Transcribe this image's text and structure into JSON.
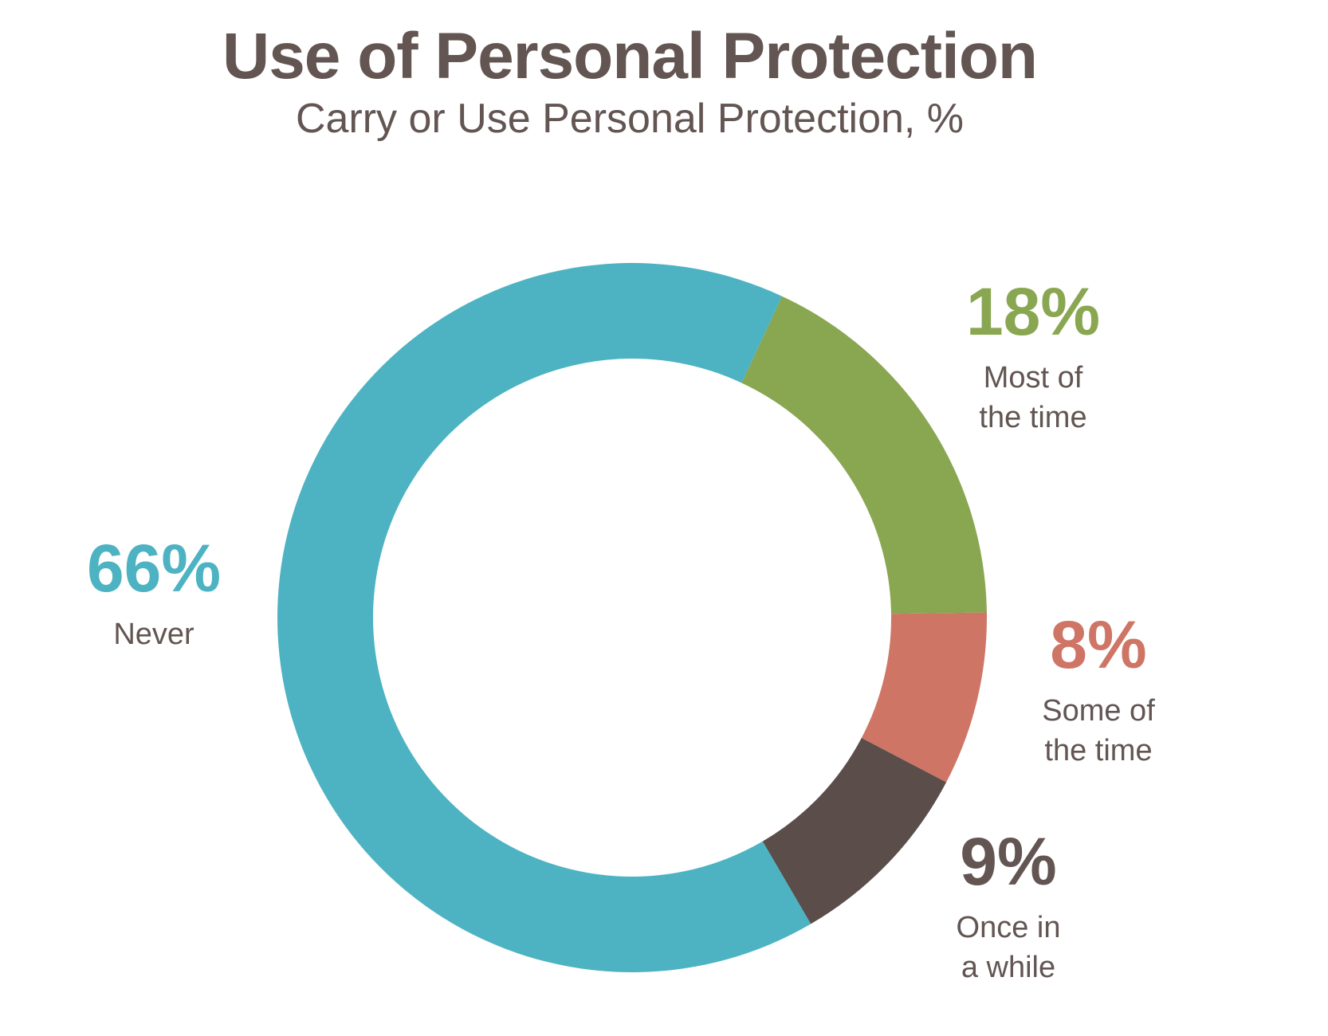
{
  "header": {
    "title": "Use of Personal Protection",
    "subtitle": "Carry or Use Personal Protection, %"
  },
  "chart_data": {
    "type": "pie",
    "title": "Use of Personal Protection",
    "subtitle": "Carry or Use Personal Protection, %",
    "start_angle_deg": 25,
    "slices": [
      {
        "label_lines": [
          "Most of",
          "the time"
        ],
        "value": 18,
        "display": "18%",
        "color": "#89A651"
      },
      {
        "label_lines": [
          "Some of",
          "the time"
        ],
        "value": 8,
        "display": "8%",
        "color": "#CE7566"
      },
      {
        "label_lines": [
          "Once in",
          "a while"
        ],
        "value": 9,
        "display": "9%",
        "color": "#5A4D4A"
      },
      {
        "label_lines": [
          "Never"
        ],
        "value": 66,
        "display": "66%",
        "color": "#4DB3C2"
      }
    ]
  }
}
